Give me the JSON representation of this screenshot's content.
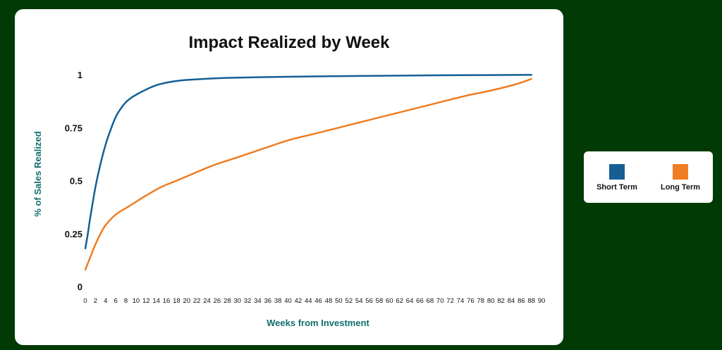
{
  "chart_data": {
    "type": "line",
    "title": "Impact Realized by Week",
    "xlabel": "Weeks from Investment",
    "ylabel": "% of Sales Realized",
    "xlim": [
      0,
      90
    ],
    "ylim": [
      0,
      1
    ],
    "xticks": [
      0,
      2,
      4,
      6,
      8,
      10,
      12,
      14,
      16,
      18,
      20,
      22,
      24,
      26,
      28,
      30,
      32,
      34,
      36,
      38,
      40,
      42,
      44,
      46,
      48,
      50,
      52,
      54,
      56,
      58,
      60,
      62,
      64,
      66,
      68,
      70,
      72,
      74,
      76,
      78,
      80,
      82,
      84,
      86,
      88,
      90
    ],
    "yticks": [
      {
        "value": 0,
        "label": "0"
      },
      {
        "value": 0.25,
        "label": "0.25"
      },
      {
        "value": 0.5,
        "label": "0.5"
      },
      {
        "value": 0.75,
        "label": "0.75"
      },
      {
        "value": 1,
        "label": "1"
      }
    ],
    "grid": false,
    "legend_position": "right",
    "series": [
      {
        "name": "Short Term",
        "color": "#155f94",
        "x": [
          0,
          0.5,
          1,
          2,
          3,
          4,
          5,
          6,
          7,
          8,
          9,
          10,
          12,
          14,
          16,
          18,
          20,
          25,
          30,
          40,
          50,
          60,
          70,
          80,
          88
        ],
        "y": [
          0.18,
          0.25,
          0.33,
          0.47,
          0.58,
          0.67,
          0.74,
          0.8,
          0.84,
          0.87,
          0.89,
          0.905,
          0.93,
          0.95,
          0.962,
          0.97,
          0.975,
          0.982,
          0.986,
          0.99,
          0.993,
          0.995,
          0.997,
          0.998,
          0.999
        ]
      },
      {
        "name": "Long Term",
        "color": "#ef7d22",
        "x": [
          0,
          1,
          2,
          3,
          4,
          6,
          8,
          10,
          12,
          15,
          18,
          20,
          25,
          30,
          35,
          40,
          45,
          50,
          55,
          60,
          65,
          70,
          75,
          80,
          85,
          88
        ],
        "y": [
          0.08,
          0.14,
          0.2,
          0.25,
          0.29,
          0.34,
          0.37,
          0.4,
          0.43,
          0.47,
          0.5,
          0.52,
          0.57,
          0.61,
          0.65,
          0.69,
          0.72,
          0.75,
          0.78,
          0.81,
          0.84,
          0.87,
          0.9,
          0.925,
          0.955,
          0.98
        ]
      }
    ]
  }
}
